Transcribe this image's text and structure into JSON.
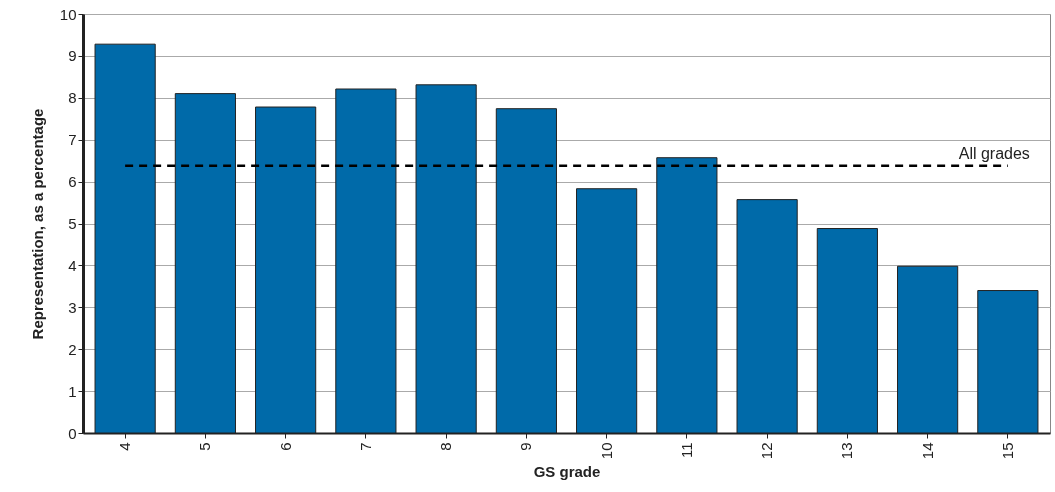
{
  "chart_data": {
    "type": "bar",
    "xlabel": "GS grade",
    "ylabel": "Representation, as a percentage",
    "categories": [
      "4",
      "5",
      "6",
      "7",
      "8",
      "9",
      "10",
      "11",
      "12",
      "13",
      "14",
      "15"
    ],
    "values": [
      9.28,
      8.1,
      7.78,
      8.21,
      8.31,
      7.74,
      5.83,
      6.57,
      5.57,
      4.88,
      3.98,
      3.4
    ],
    "color": "#006aa9",
    "ylim": [
      0,
      10
    ],
    "yticks": [
      0,
      1,
      2,
      3,
      4,
      5,
      6,
      7,
      8,
      9,
      10
    ],
    "grid": "y",
    "ref_lines": [
      {
        "axis": "y",
        "value": 6.38,
        "label": "All grades",
        "line_style": "dashed",
        "color": "#000000"
      }
    ]
  }
}
